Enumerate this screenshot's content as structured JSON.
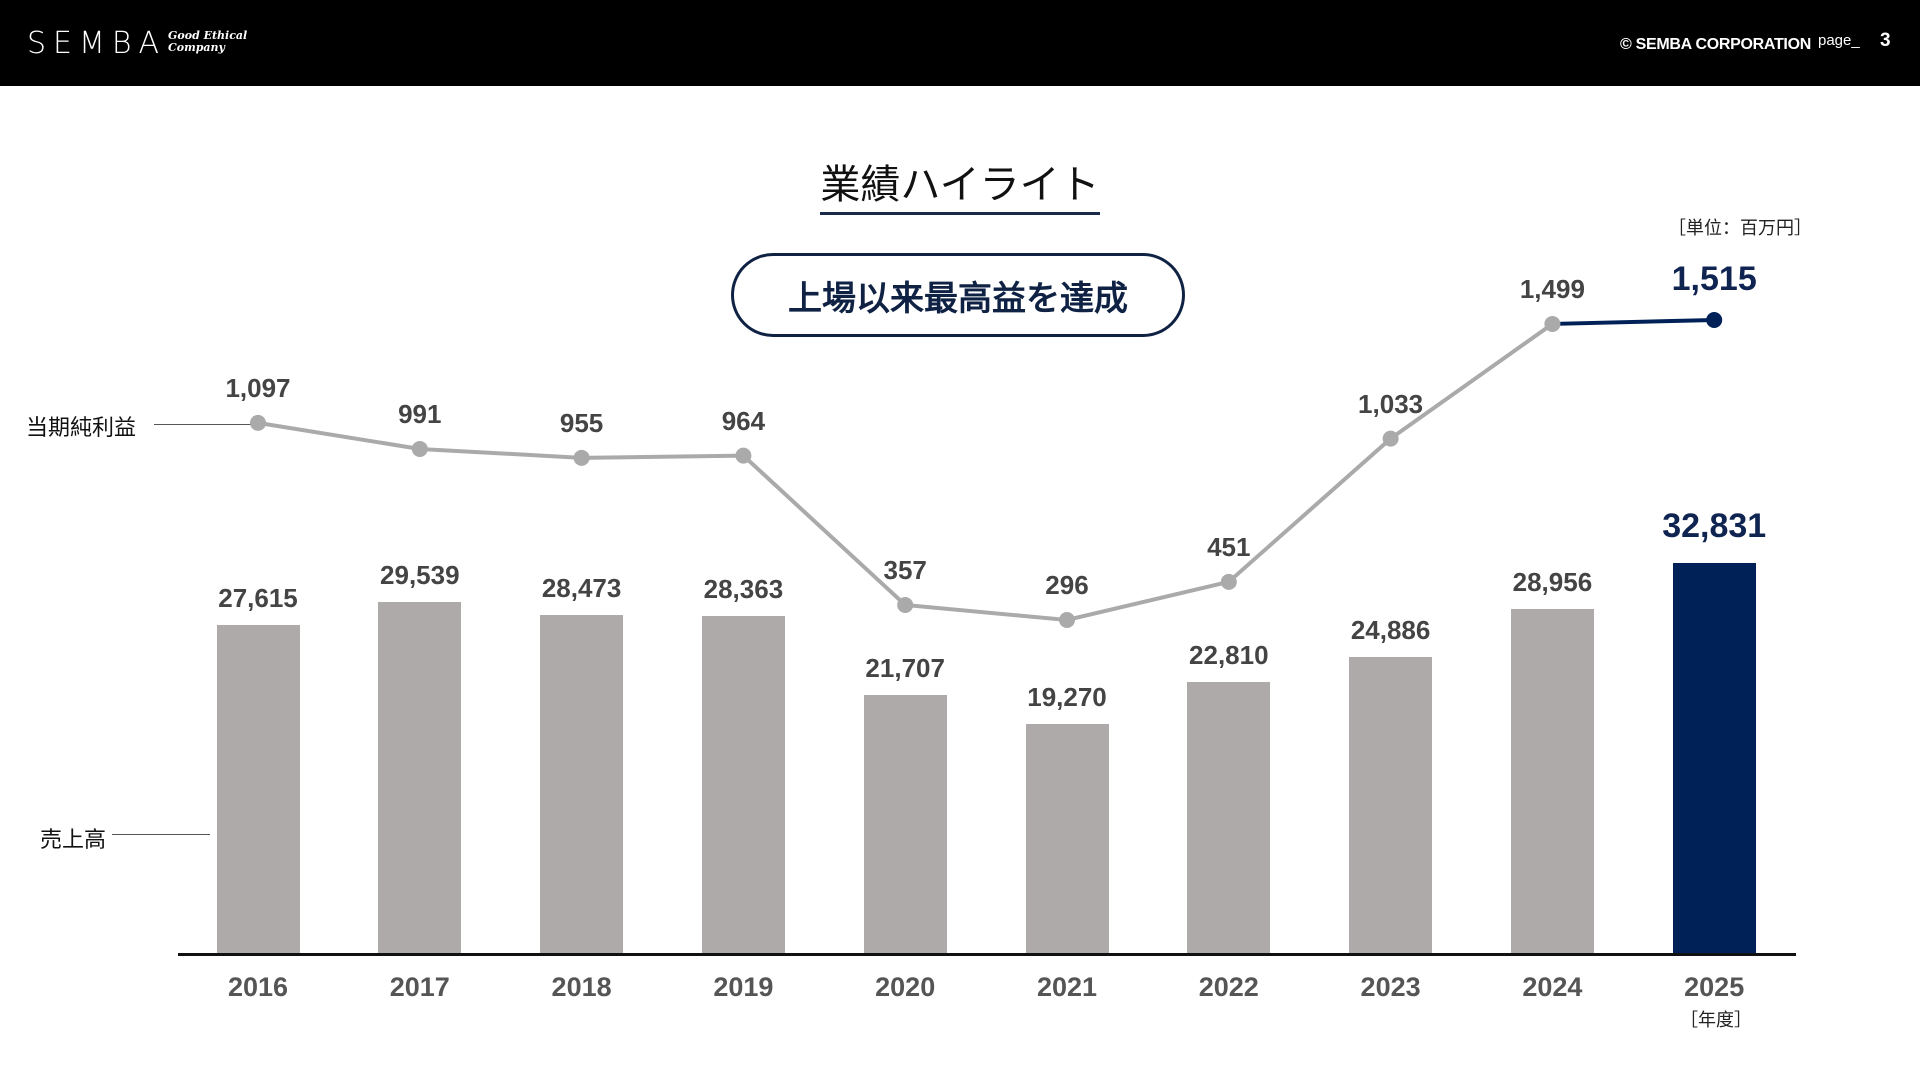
{
  "header": {
    "logo": "SEMBA",
    "tagline_line1": "Good Ethical",
    "tagline_line2": "Company",
    "copyright": "© SEMBA CORPORATION",
    "page_label": "page_",
    "page_number": "3"
  },
  "title": "業績ハイライト",
  "unit_label": "［単位：百万円］",
  "highlight_pill": "上場以来最高益を達成",
  "series_labels": {
    "net_income": "当期純利益",
    "sales": "売上高"
  },
  "year_unit": "［年度］",
  "colors": {
    "bar_gray": "#aeaaa9",
    "highlight_navy": "#002157",
    "line_gray": "#aaaaaa",
    "header_bg": "#000000"
  },
  "chart_data": {
    "type": "bar+line",
    "title": "業績ハイライト",
    "unit": "百万円",
    "categories": [
      "2016",
      "2017",
      "2018",
      "2019",
      "2020",
      "2021",
      "2022",
      "2023",
      "2024",
      "2025"
    ],
    "series": [
      {
        "name": "売上高",
        "type": "bar",
        "values": [
          27615,
          29539,
          28473,
          28363,
          21707,
          19270,
          22810,
          24886,
          28956,
          32831
        ],
        "labels": [
          "27,615",
          "29,539",
          "28,473",
          "28,363",
          "21,707",
          "19,270",
          "22,810",
          "24,886",
          "28,956",
          "32,831"
        ]
      },
      {
        "name": "当期純利益",
        "type": "line",
        "values": [
          1097,
          991,
          955,
          964,
          357,
          296,
          451,
          1033,
          1499,
          1515
        ],
        "labels": [
          "1,097",
          "991",
          "955",
          "964",
          "357",
          "296",
          "451",
          "1,033",
          "1,499",
          "1,515"
        ]
      }
    ],
    "highlight_category": "2025",
    "xlabel": "年度",
    "annotation": "上場以来最高益を達成",
    "grid": false
  }
}
